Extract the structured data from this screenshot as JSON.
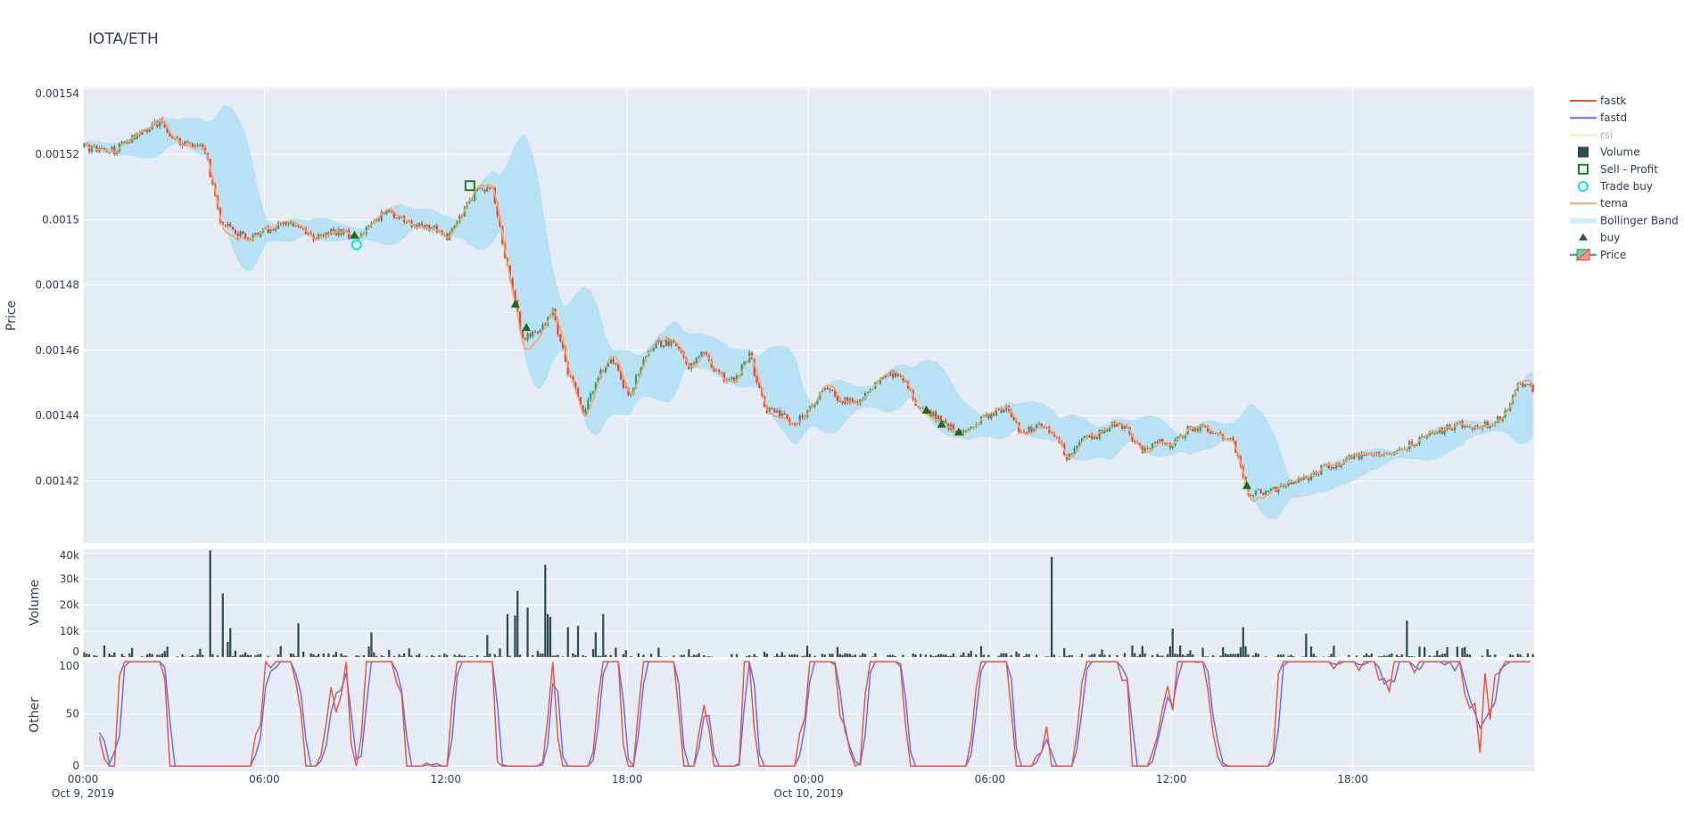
{
  "title": "IOTA/ETH",
  "colors": {
    "background": "#E5ECF6",
    "increasing": "#26a17b",
    "decreasing": "#f0412a",
    "band": "#b6e0f5",
    "tema": "#ffa15a",
    "fastk": "#ef553b",
    "fastd": "#636efa",
    "volume": "#2f4f4f",
    "buy": "#1a6b1a",
    "trade_buy": "#00e5ee",
    "sell_profit": "#118811"
  },
  "legend": {
    "placement": "right",
    "items": [
      {
        "label": "fastk",
        "icon": "line-red"
      },
      {
        "label": "fastd",
        "icon": "line-blue"
      },
      {
        "label": "rsi",
        "icon": "line-faded-yellow",
        "hidden": true
      },
      {
        "label": "Volume",
        "icon": "square-dark"
      },
      {
        "label": "Sell - Profit",
        "icon": "square-open-green"
      },
      {
        "label": "Trade buy",
        "icon": "circle-open-cyan"
      },
      {
        "label": "tema",
        "icon": "line-orange"
      },
      {
        "label": "Bollinger Band",
        "icon": "band-lightblue"
      },
      {
        "label": "buy",
        "icon": "triangle-up-green"
      },
      {
        "label": "Price",
        "icon": "candlestick"
      }
    ]
  },
  "chart_data": [
    {
      "type": "candlestick",
      "ylabel": "Price",
      "ylim": [
        0.001401,
        0.0015405
      ],
      "yticks": [
        "0.00142",
        "0.00144",
        "0.00146",
        "0.00148",
        "0.0015",
        "0.00152",
        "0.00154"
      ],
      "ytick_values": [
        0.00142,
        0.00144,
        0.00146,
        0.00148,
        0.0015,
        0.00152,
        0.00154
      ],
      "grid": true,
      "x_start": "2019-10-09 00:00",
      "x_end": "2019-10-10 23:55",
      "candle_interval": "5min",
      "close_30min": [
        0.0015222,
        0.0015213,
        0.0015213,
        0.0015245,
        0.0015272,
        0.0015301,
        0.0015245,
        0.0015229,
        0.0015213,
        0.0014999,
        0.0014956,
        0.0014949,
        0.0014966,
        0.0014989,
        0.0014982,
        0.0014943,
        0.0014956,
        0.0014966,
        0.0014943,
        0.0014982,
        0.0015032,
        0.0014999,
        0.0014982,
        0.0014976,
        0.0014943,
        0.0015015,
        0.0015097,
        0.0015088,
        0.0014851,
        0.0014637,
        0.0014653,
        0.0014719,
        0.0014538,
        0.0014407,
        0.0014522,
        0.0014571,
        0.0014456,
        0.0014571,
        0.0014621,
        0.0014627,
        0.0014555,
        0.0014588,
        0.0014522,
        0.0014505,
        0.0014588,
        0.0014423,
        0.0014407,
        0.0014374,
        0.0014423,
        0.0014489,
        0.0014449,
        0.001444,
        0.0014473,
        0.0014528,
        0.0014528,
        0.001444,
        0.0014407,
        0.0014374,
        0.0014341,
        0.0014374,
        0.0014407,
        0.0014423,
        0.0014341,
        0.0014374,
        0.0014357,
        0.0014275,
        0.0014325,
        0.0014341,
        0.0014374,
        0.0014357,
        0.0014285,
        0.0014325,
        0.0014308,
        0.0014357,
        0.0014364,
        0.0014341,
        0.0014325,
        0.001416,
        0.0014167,
        0.0014177,
        0.00142,
        0.0014209,
        0.0014242,
        0.0014252,
        0.0014275,
        0.0014275,
        0.0014285,
        0.0014298,
        0.0014318,
        0.0014341,
        0.0014357,
        0.0014374,
        0.0014364,
        0.0014374,
        0.0014407,
        0.0014505,
        0.0014473
      ],
      "markers": {
        "buy": [
          {
            "time": "2019-10-09 08:59",
            "price": 0.0014953
          },
          {
            "time": "2019-10-09 14:18",
            "price": 0.0014742
          },
          {
            "time": "2019-10-09 14:40",
            "price": 0.001467
          },
          {
            "time": "2019-10-10 03:54",
            "price": 0.0014417
          },
          {
            "time": "2019-10-10 04:24",
            "price": 0.0014374
          },
          {
            "time": "2019-10-10 04:58",
            "price": 0.001435
          },
          {
            "time": "2019-10-10 14:30",
            "price": 0.0014186
          }
        ],
        "trade_buy": [
          {
            "time": "2019-10-09 09:03",
            "price": 0.0014923
          }
        ],
        "sell_profit": [
          {
            "time": "2019-10-09 12:48",
            "price": 0.0015104
          }
        ]
      },
      "indicators": [
        "tema",
        "Bollinger Band"
      ]
    },
    {
      "type": "bar",
      "ylabel": "Volume",
      "ylim": [
        0,
        41500
      ],
      "yticks": [
        "0",
        "10k",
        "20k",
        "30k",
        "40k"
      ],
      "ytick_values": [
        0,
        10000,
        20000,
        30000,
        40000
      ],
      "spikes": [
        {
          "time": "2019-10-09 04:10",
          "volume": 41000
        },
        {
          "time": "2019-10-09 04:35",
          "volume": 24500
        },
        {
          "time": "2019-10-09 04:50",
          "volume": 11200
        },
        {
          "time": "2019-10-09 04:45",
          "volume": 5800
        },
        {
          "time": "2019-10-09 07:05",
          "volume": 13000
        },
        {
          "time": "2019-10-09 09:30",
          "volume": 9500
        },
        {
          "time": "2019-10-09 13:20",
          "volume": 8500
        },
        {
          "time": "2019-10-09 14:00",
          "volume": 16500
        },
        {
          "time": "2019-10-09 14:15",
          "volume": 16000
        },
        {
          "time": "2019-10-09 14:20",
          "volume": 25500
        },
        {
          "time": "2019-10-09 14:40",
          "volume": 19000
        },
        {
          "time": "2019-10-09 15:15",
          "volume": 35500
        },
        {
          "time": "2019-10-09 15:20",
          "volume": 16500
        },
        {
          "time": "2019-10-09 15:25",
          "volume": 15500
        },
        {
          "time": "2019-10-09 16:00",
          "volume": 11500
        },
        {
          "time": "2019-10-09 16:20",
          "volume": 12000
        },
        {
          "time": "2019-10-09 17:10",
          "volume": 16500
        },
        {
          "time": "2019-10-09 16:55",
          "volume": 9500
        },
        {
          "time": "2019-10-10 08:00",
          "volume": 38500
        },
        {
          "time": "2019-10-10 12:00",
          "volume": 11000
        },
        {
          "time": "2019-10-10 14:20",
          "volume": 11500
        },
        {
          "time": "2019-10-10 16:25",
          "volume": 9000
        },
        {
          "time": "2019-10-10 19:45",
          "volume": 14000
        }
      ]
    },
    {
      "type": "line",
      "ylabel": "Other",
      "ylim": [
        -5,
        102
      ],
      "yticks": [
        "0",
        "50",
        "100"
      ],
      "ytick_values": [
        0,
        50,
        100
      ],
      "series": [
        {
          "name": "fastk"
        },
        {
          "name": "fastd"
        }
      ]
    }
  ],
  "xaxis": {
    "ticks": [
      {
        "label": "00:00",
        "sub": "Oct 9, 2019",
        "hour": 0
      },
      {
        "label": "06:00",
        "sub": "",
        "hour": 6
      },
      {
        "label": "12:00",
        "sub": "",
        "hour": 12
      },
      {
        "label": "18:00",
        "sub": "",
        "hour": 18
      },
      {
        "label": "00:00",
        "sub": "Oct 10, 2019",
        "hour": 24
      },
      {
        "label": "06:00",
        "sub": "",
        "hour": 30
      },
      {
        "label": "12:00",
        "sub": "",
        "hour": 36
      },
      {
        "label": "18:00",
        "sub": "",
        "hour": 42
      }
    ]
  }
}
